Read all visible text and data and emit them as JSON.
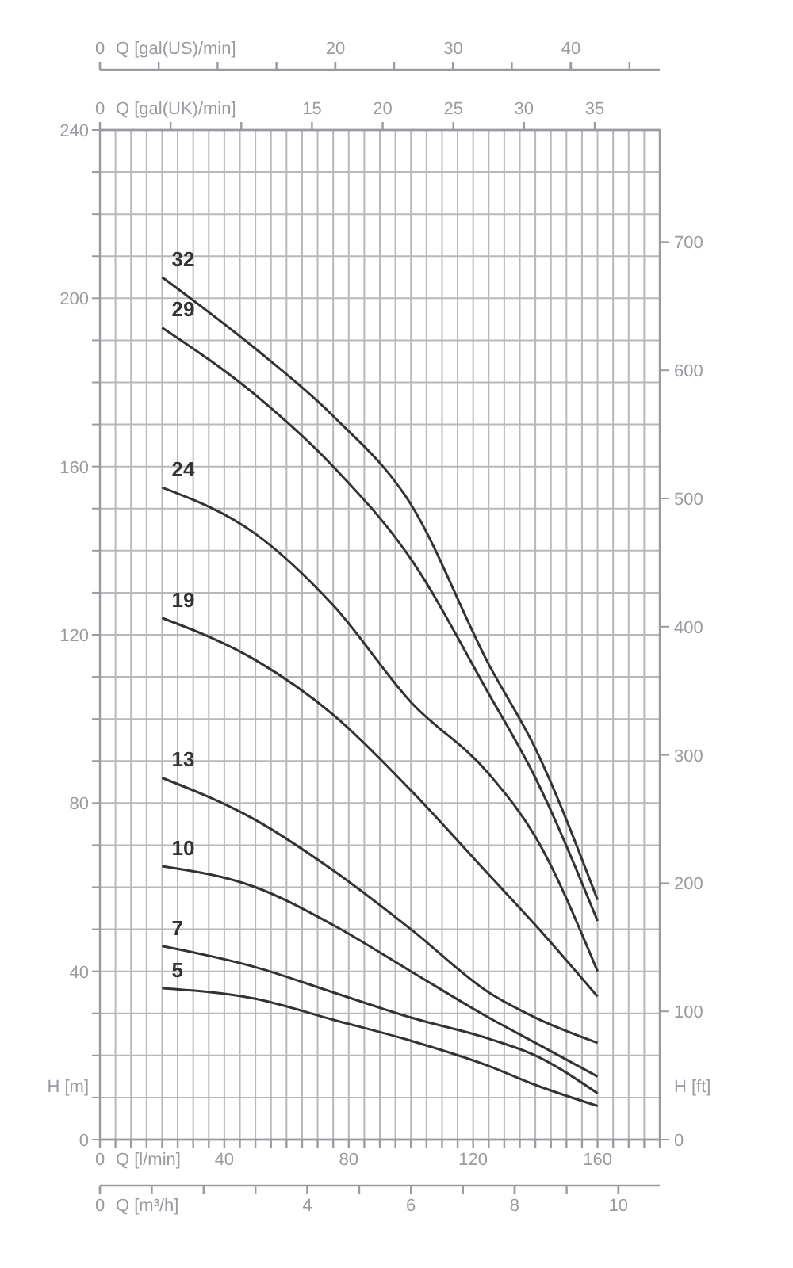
{
  "chart_data": [
    {
      "type": "other",
      "xlabel": "Q [gal(US)/min]",
      "annotations": [
        "0",
        "20",
        "30",
        "40"
      ]
    },
    {
      "type": "line",
      "xlabel": "Q [l/min]",
      "ylabel": "H [m]",
      "y2label": "H [ft]",
      "x2label": "Q [gal(UK)/min]",
      "x": [
        20,
        50,
        75,
        100,
        125,
        140,
        160
      ],
      "series": [
        {
          "name": "32",
          "color": "#333333",
          "values": [
            205,
            188,
            172,
            151,
            113,
            93,
            57
          ]
        },
        {
          "name": "29",
          "color": "#333333",
          "values": [
            193,
            177,
            160,
            138,
            106,
            86,
            52
          ]
        },
        {
          "name": "24",
          "color": "#333333",
          "values": [
            155,
            144,
            127,
            104,
            87,
            72,
            40
          ]
        },
        {
          "name": "19",
          "color": "#333333",
          "values": [
            124,
            114,
            101,
            83,
            63,
            51,
            34
          ]
        },
        {
          "name": "13",
          "color": "#333333",
          "values": [
            86,
            76,
            64,
            50,
            35,
            29,
            23
          ]
        },
        {
          "name": "10",
          "color": "#333333",
          "values": [
            65,
            60,
            51,
            40,
            29,
            23,
            15
          ]
        },
        {
          "name": "7",
          "color": "#333333",
          "values": [
            46,
            41,
            35,
            29,
            24,
            20,
            11
          ]
        },
        {
          "name": "5",
          "color": "#333333",
          "values": [
            36,
            33.5,
            28.5,
            23.5,
            17.5,
            13,
            8
          ]
        }
      ],
      "xlim": [
        0,
        180
      ],
      "xticks": [
        0,
        {
          "value": 5,
          "label": null
        },
        {
          "value": 10,
          "label": null
        },
        {
          "value": 15,
          "label": null
        },
        {
          "value": 20,
          "label": null
        },
        {
          "value": 25,
          "label": null
        },
        {
          "value": 30,
          "label": null
        },
        {
          "value": 35,
          "label": null
        },
        40,
        {
          "value": 45,
          "label": null
        },
        {
          "value": 50,
          "label": null
        },
        {
          "value": 55,
          "label": null
        },
        {
          "value": 60,
          "label": null
        },
        {
          "value": 65,
          "label": null
        },
        {
          "value": 70,
          "label": null
        },
        {
          "value": 75,
          "label": null
        },
        80,
        {
          "value": 85,
          "label": null
        },
        {
          "value": 90,
          "label": null
        },
        {
          "value": 95,
          "label": null
        },
        {
          "value": 100,
          "label": null
        },
        {
          "value": 105,
          "label": null
        },
        {
          "value": 110,
          "label": null
        },
        {
          "value": 115,
          "label": null
        },
        120,
        {
          "value": 125,
          "label": null
        },
        {
          "value": 130,
          "label": null
        },
        {
          "value": 135,
          "label": null
        },
        {
          "value": 140,
          "label": null
        },
        {
          "value": 145,
          "label": null
        },
        {
          "value": 150,
          "label": null
        },
        {
          "value": 155,
          "label": null
        },
        160,
        {
          "value": 165,
          "label": null
        },
        {
          "value": 170,
          "label": null
        },
        {
          "value": 175,
          "label": null
        },
        {
          "value": 180,
          "label": null
        }
      ],
      "ylim": [
        0,
        240
      ],
      "yticks": [
        0,
        {
          "value": 10,
          "label": null
        },
        {
          "value": 20,
          "label": null
        },
        {
          "value": 30,
          "label": null
        },
        40,
        {
          "value": 50,
          "label": null
        },
        {
          "value": 60,
          "label": null
        },
        {
          "value": 70,
          "label": null
        },
        80,
        {
          "value": 90,
          "label": null
        },
        {
          "value": 100,
          "label": null
        },
        {
          "value": 110,
          "label": null
        },
        120,
        {
          "value": 130,
          "label": null
        },
        {
          "value": 140,
          "label": null
        },
        {
          "value": 150,
          "label": null
        },
        160,
        {
          "value": 170,
          "label": null
        },
        {
          "value": 180,
          "label": null
        },
        {
          "value": 190,
          "label": null
        },
        200,
        {
          "value": 210,
          "label": null
        },
        {
          "value": 220,
          "label": null
        },
        {
          "value": 230,
          "label": null
        },
        240
      ],
      "y2lim": [
        0,
        787.4
      ],
      "y2ticks": [
        0,
        100,
        200,
        300,
        400,
        500,
        600,
        700
      ],
      "x2lim": [
        0,
        39.6
      ],
      "x2ticks": [
        0,
        {
          "value": 5,
          "label": null
        },
        {
          "value": 10,
          "label": null
        },
        15,
        20,
        25,
        30,
        35
      ],
      "grid": true,
      "line_style": "solid"
    },
    {
      "type": "other",
      "xlabel": "Q [m³/h]",
      "annotations": [
        "0",
        "4",
        "6",
        "8",
        "10"
      ]
    }
  ]
}
